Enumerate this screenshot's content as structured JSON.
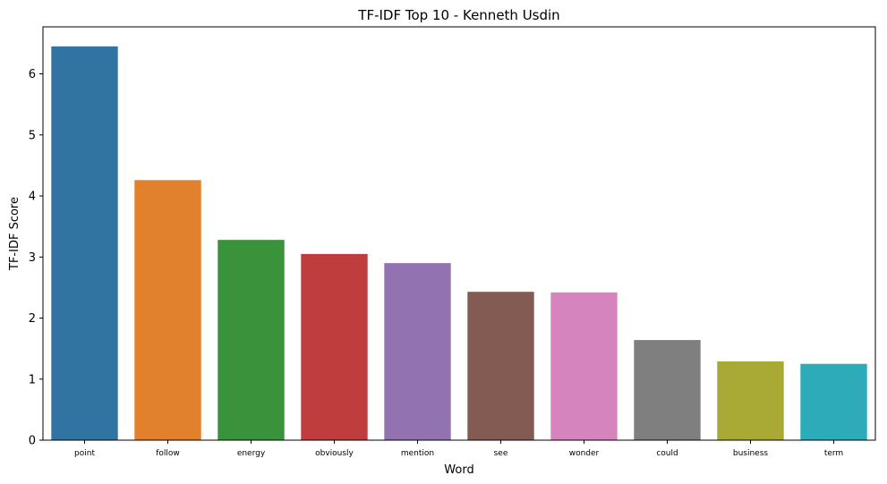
{
  "chart_data": {
    "type": "bar",
    "title": "TF-IDF Top 10 - Kenneth Usdin",
    "xlabel": "Word",
    "ylabel": "TF-IDF Score",
    "categories": [
      "point",
      "follow",
      "energy",
      "obviously",
      "mention",
      "see",
      "wonder",
      "could",
      "business",
      "term"
    ],
    "values": [
      6.45,
      4.26,
      3.28,
      3.05,
      2.9,
      2.43,
      2.42,
      1.64,
      1.29,
      1.25
    ],
    "ylim": [
      0,
      6.77
    ],
    "yticks": [
      0,
      1,
      2,
      3,
      4,
      5,
      6
    ],
    "grid": false,
    "colors": [
      "#3274a1",
      "#e1812c",
      "#3a923a",
      "#c03d3e",
      "#9372b2",
      "#845b53",
      "#d684bd",
      "#7f7f7f",
      "#a9aa35",
      "#2eabb8"
    ]
  }
}
